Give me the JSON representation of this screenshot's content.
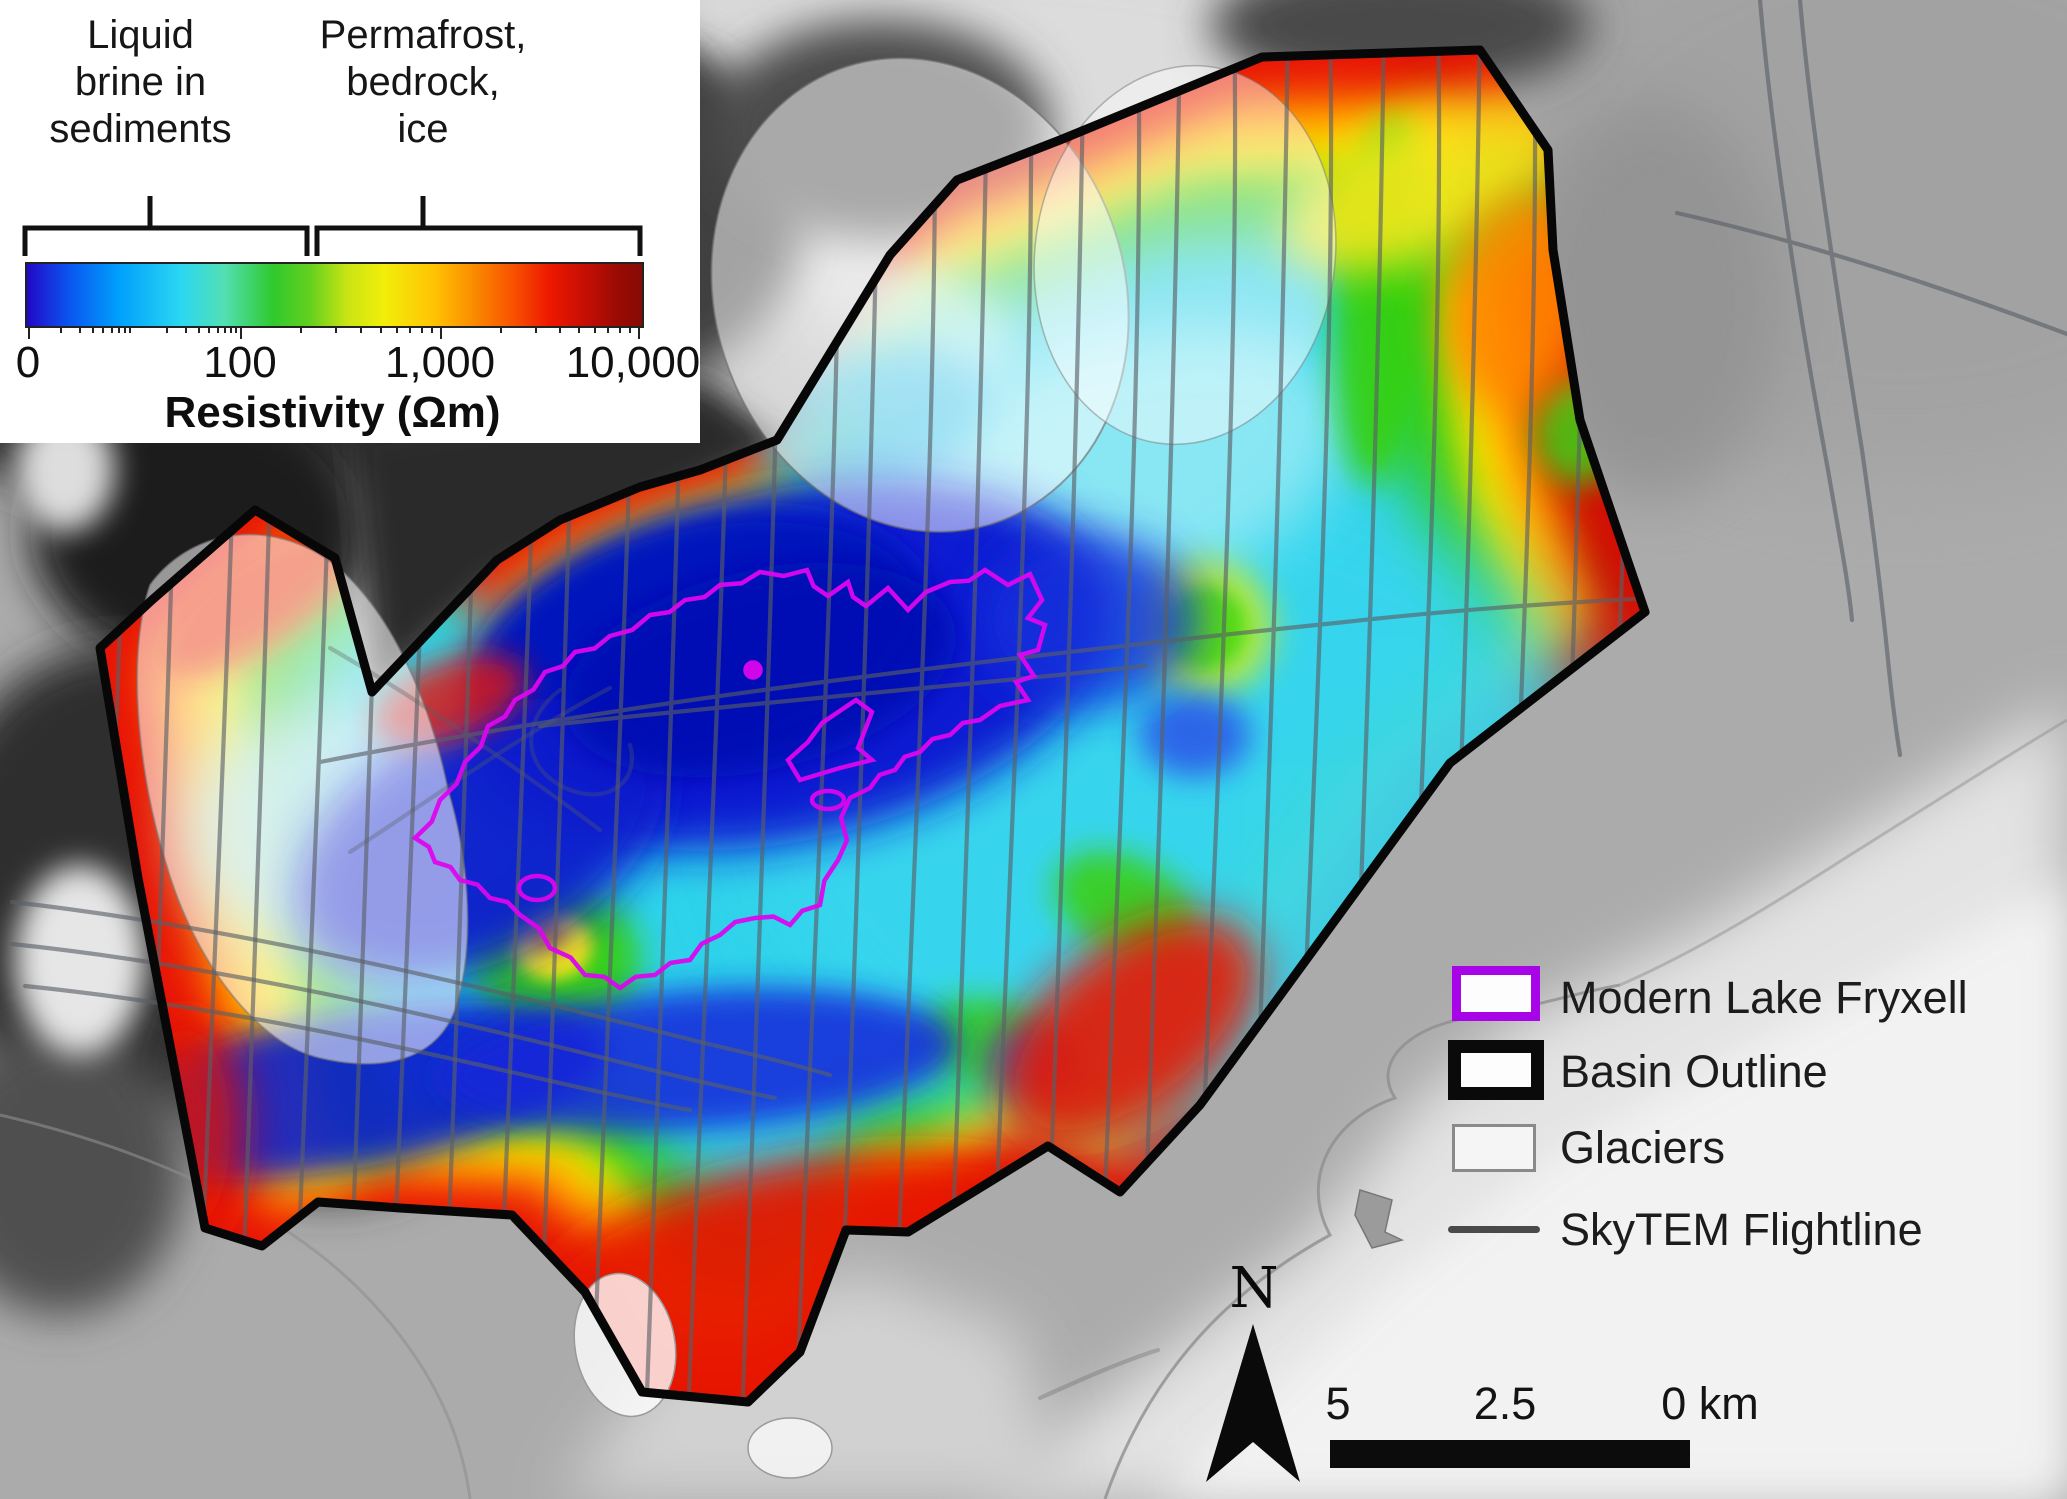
{
  "figure": {
    "colorbar_legend": {
      "label_low": "Liquid\nbrine in\nsediments",
      "label_high": "Permafrost,\nbedrock,\nice",
      "ticks": [
        "0",
        "100",
        "1,000",
        "10,000"
      ],
      "title": "Resistivity (Ωm)"
    },
    "map_legend": {
      "items": [
        {
          "label": "Modern Lake Fryxell"
        },
        {
          "label": "Basin Outline"
        },
        {
          "label": "Glaciers"
        },
        {
          "label": "SkyTEM Flightline"
        }
      ]
    },
    "north_label": "N",
    "scale_bar": {
      "labels": [
        "5",
        "2.5",
        "0 km"
      ]
    },
    "colors": {
      "basin_outline": "#070707",
      "lake_outline": "#dc06ef",
      "legend_lake_swatch": "#a705e8",
      "flightline": "#5a5f66",
      "colorbar_gradient": [
        [
          "#2208c8",
          0
        ],
        [
          "#0a57f0",
          7
        ],
        [
          "#00a0fc",
          15
        ],
        [
          "#2bd7f2",
          25
        ],
        [
          "#52e0b4",
          32
        ],
        [
          "#2fc92e",
          40
        ],
        [
          "#63d01e",
          46
        ],
        [
          "#c8e414",
          52
        ],
        [
          "#f2ee0a",
          58
        ],
        [
          "#ffc403",
          66
        ],
        [
          "#fb9100",
          72
        ],
        [
          "#f85200",
          79
        ],
        [
          "#ee1800",
          85
        ],
        [
          "#c40e04",
          91
        ],
        [
          "#9a0b04",
          96
        ],
        [
          "#860a05",
          100
        ]
      ]
    }
  }
}
